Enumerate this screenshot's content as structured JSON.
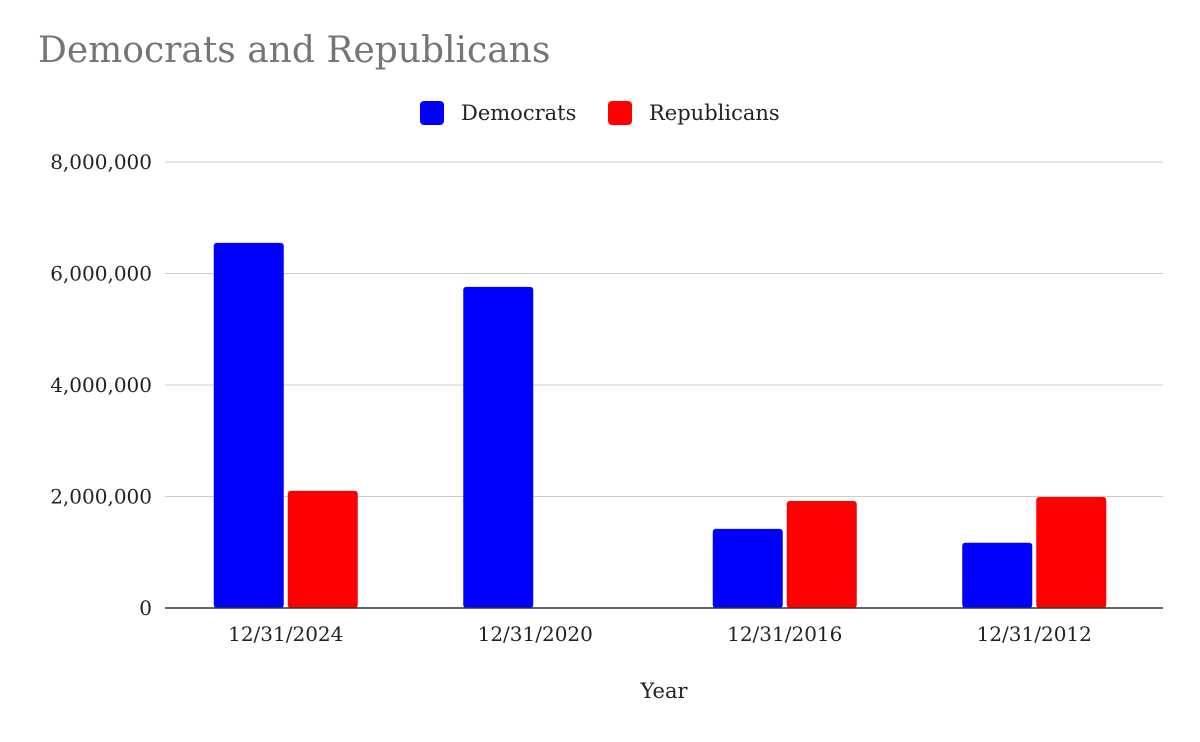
{
  "chart_data": {
    "type": "bar",
    "title": "Democrats and Republicans",
    "xlabel": "Year",
    "ylabel": "",
    "categories": [
      "12/31/2024",
      "12/31/2020",
      "12/31/2016",
      "12/31/2012"
    ],
    "series": [
      {
        "name": "Democrats",
        "color": "#0000ff",
        "values": [
          6550000,
          5760000,
          1420000,
          1170000
        ]
      },
      {
        "name": "Republicans",
        "color": "#ff0000",
        "values": [
          2100000,
          0,
          1920000,
          1990000
        ]
      }
    ],
    "ylim": [
      0,
      8000000
    ],
    "yticks": [
      0,
      2000000,
      4000000,
      6000000,
      8000000
    ],
    "ytick_labels": [
      "0",
      "2,000,000",
      "4,000,000",
      "6,000,000",
      "8,000,000"
    ],
    "grid": true,
    "legend_position": "top-center"
  }
}
